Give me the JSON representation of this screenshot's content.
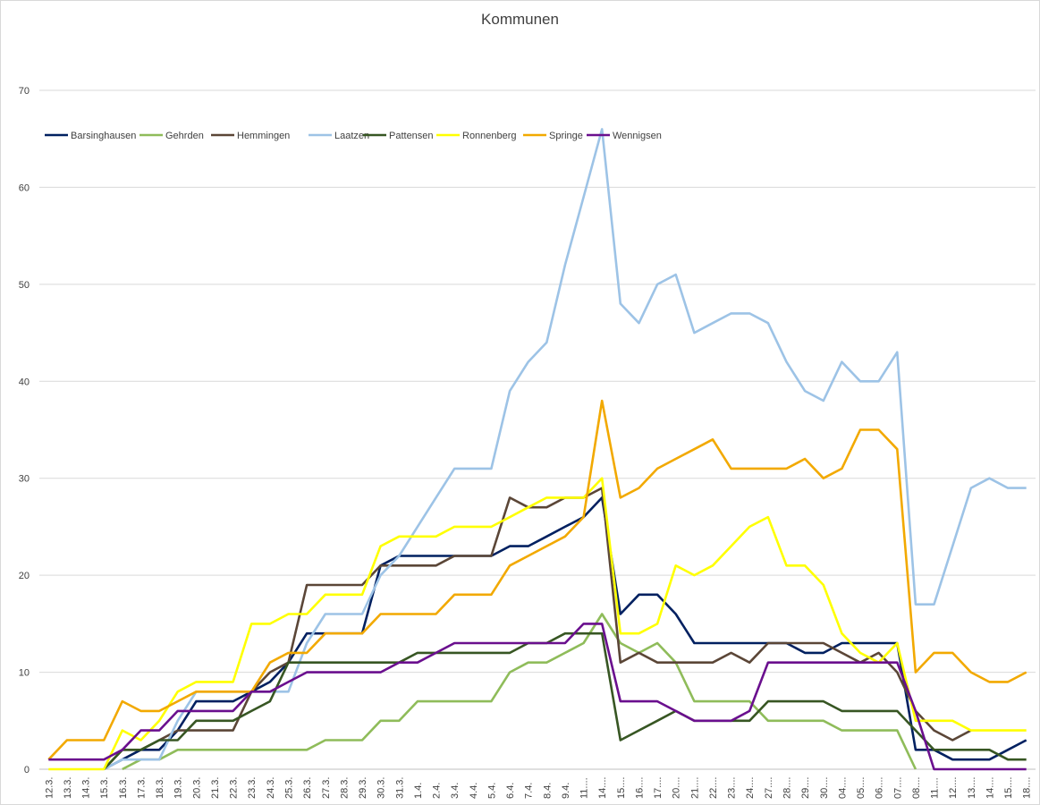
{
  "chart_data": {
    "type": "line",
    "title": "Kommunen",
    "xlabel": "",
    "ylabel": "",
    "ylim": [
      0,
      70
    ],
    "yticks": [
      0,
      10,
      20,
      30,
      40,
      50,
      60,
      70
    ],
    "grid": "horizontal",
    "legend_position": "top-left",
    "categories": [
      "12.3.",
      "13.3.",
      "14.3.",
      "15.3.",
      "16.3.",
      "17.3.",
      "18.3.",
      "19.3.",
      "20.3.",
      "21.3.",
      "22.3.",
      "23.3.",
      "24.3.",
      "25.3.",
      "26.3.",
      "27.3.",
      "28.3.",
      "29.3.",
      "30.3.",
      "31.3.",
      "1.4.",
      "2.4.",
      "3.4.",
      "4.4.",
      "5.4.",
      "6.4.",
      "7.4.",
      "8.4.",
      "9.4.",
      "11....",
      "14....",
      "15....",
      "16....",
      "17....",
      "20....",
      "21....",
      "22....",
      "23....",
      "24....",
      "27....",
      "28....",
      "29....",
      "30....",
      "04....",
      "05....",
      "06....",
      "07....",
      "08....",
      "11....",
      "12....",
      "13....",
      "14....",
      "15....",
      "18...."
    ],
    "series": [
      {
        "name": "Barsinghausen",
        "color": "#002060",
        "values": [
          null,
          null,
          null,
          0,
          1,
          2,
          2,
          4,
          7,
          7,
          7,
          8,
          9,
          11,
          14,
          14,
          14,
          14,
          21,
          22,
          22,
          22,
          22,
          22,
          22,
          23,
          23,
          24,
          25,
          26,
          28,
          16,
          18,
          18,
          16,
          13,
          13,
          13,
          13,
          13,
          13,
          12,
          12,
          13,
          13,
          13,
          13,
          2,
          2,
          1,
          1,
          1,
          2,
          3
        ]
      },
      {
        "name": "Gehrden",
        "color": "#8fbc5a",
        "values": [
          null,
          null,
          null,
          null,
          0,
          1,
          1,
          2,
          2,
          2,
          2,
          2,
          2,
          2,
          2,
          3,
          3,
          3,
          5,
          5,
          7,
          7,
          7,
          7,
          7,
          10,
          11,
          11,
          12,
          13,
          16,
          13,
          12,
          13,
          11,
          7,
          7,
          7,
          7,
          5,
          5,
          5,
          5,
          4,
          4,
          4,
          4,
          0,
          null,
          null,
          null,
          null,
          null,
          null
        ]
      },
      {
        "name": "Hemmingen",
        "color": "#5b4637",
        "values": [
          null,
          null,
          null,
          0,
          2,
          2,
          3,
          4,
          4,
          4,
          4,
          8,
          10,
          11,
          19,
          19,
          19,
          19,
          21,
          21,
          21,
          21,
          22,
          22,
          22,
          28,
          27,
          27,
          28,
          28,
          29,
          11,
          12,
          11,
          11,
          11,
          11,
          12,
          11,
          13,
          13,
          13,
          13,
          12,
          11,
          12,
          10,
          6,
          4,
          3,
          4,
          null,
          null,
          null
        ]
      },
      {
        "name": "Laatzen",
        "color": "#9dc3e6",
        "values": [
          null,
          null,
          null,
          0,
          1,
          1,
          1,
          5,
          8,
          8,
          8,
          8,
          8,
          8,
          13,
          16,
          16,
          16,
          20,
          22,
          25,
          28,
          31,
          31,
          31,
          39,
          42,
          44,
          52,
          59,
          66,
          48,
          46,
          50,
          51,
          45,
          46,
          47,
          47,
          46,
          42,
          39,
          38,
          42,
          40,
          40,
          43,
          17,
          17,
          23,
          29,
          30,
          29,
          29
        ]
      },
      {
        "name": "Pattensen",
        "color": "#375623",
        "values": [
          null,
          null,
          null,
          0,
          2,
          2,
          3,
          3,
          5,
          5,
          5,
          6,
          7,
          11,
          11,
          11,
          11,
          11,
          11,
          11,
          12,
          12,
          12,
          12,
          12,
          12,
          13,
          13,
          14,
          14,
          14,
          3,
          4,
          5,
          6,
          5,
          5,
          5,
          5,
          7,
          7,
          7,
          7,
          6,
          6,
          6,
          6,
          4,
          2,
          2,
          2,
          2,
          1,
          1
        ]
      },
      {
        "name": "Ronnenberg",
        "color": "#ffff00",
        "values": [
          0,
          0,
          0,
          0,
          4,
          3,
          5,
          8,
          9,
          9,
          9,
          15,
          15,
          16,
          16,
          18,
          18,
          18,
          23,
          24,
          24,
          24,
          25,
          25,
          25,
          26,
          27,
          28,
          28,
          28,
          30,
          14,
          14,
          15,
          21,
          20,
          21,
          23,
          25,
          26,
          21,
          21,
          19,
          14,
          12,
          11,
          13,
          5,
          5,
          5,
          4,
          4,
          4,
          4
        ]
      },
      {
        "name": "Springe",
        "color": "#f2a900",
        "values": [
          1,
          3,
          3,
          3,
          7,
          6,
          6,
          7,
          8,
          8,
          8,
          8,
          11,
          12,
          12,
          14,
          14,
          14,
          16,
          16,
          16,
          16,
          18,
          18,
          18,
          21,
          22,
          23,
          24,
          26,
          38,
          28,
          29,
          31,
          32,
          33,
          34,
          31,
          31,
          31,
          31,
          32,
          30,
          31,
          35,
          35,
          33,
          10,
          12,
          12,
          10,
          9,
          9,
          10
        ]
      },
      {
        "name": "Wennigsen",
        "color": "#6a0f8e",
        "values": [
          1,
          1,
          1,
          1,
          2,
          4,
          4,
          6,
          6,
          6,
          6,
          8,
          8,
          9,
          10,
          10,
          10,
          10,
          10,
          11,
          11,
          12,
          13,
          13,
          13,
          13,
          13,
          13,
          13,
          15,
          15,
          7,
          7,
          7,
          6,
          5,
          5,
          5,
          6,
          11,
          11,
          11,
          11,
          11,
          11,
          11,
          11,
          6,
          0,
          0,
          0,
          0,
          0,
          0
        ]
      }
    ]
  }
}
